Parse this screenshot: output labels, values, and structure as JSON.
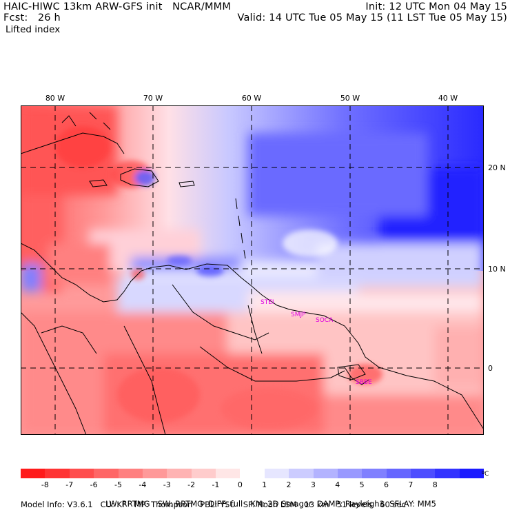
{
  "header": {
    "left1": "HAIC-HIWC 13km ARW-GFS init",
    "left1b": "NCAR/MMM",
    "left2_label": "Fcst:",
    "left2_value": "26 h",
    "right1": "Init: 12 UTC Mon 04 May 15",
    "right2": "Valid: 14 UTC Tue 05 May 15 (11 LST Tue 05 May 15)",
    "field": "Lifted index"
  },
  "lon_labels": [
    "80 W",
    "70 W",
    "60 W",
    "50 W",
    "40 W"
  ],
  "lat_labels": [
    "20 N",
    "10 N",
    "0"
  ],
  "cities": [
    "STEI",
    "SMJP",
    "SOCA",
    "SBBE"
  ],
  "colorbar": {
    "labels": [
      "-8",
      "-7",
      "-6",
      "-5",
      "-4",
      "-3",
      "-2",
      "-1",
      "0",
      "1",
      "2",
      "3",
      "4",
      "5",
      "6",
      "7",
      "8"
    ],
    "unit": "ºC",
    "colors": [
      "#ff1a1a",
      "#ff3333",
      "#ff4d4d",
      "#ff6666",
      "#ff8080",
      "#ff9999",
      "#ffb3b3",
      "#ffcccc",
      "#ffe6e6",
      "#ffffff",
      "#e6e6ff",
      "#ccccff",
      "#b3b3ff",
      "#9999ff",
      "#8080ff",
      "#6666ff",
      "#4d4dff",
      "#3333ff",
      "#1a1aff"
    ]
  },
  "footer": {
    "line1": [
      "Model Info: V3.6.1",
      "CU: KF",
      "MP: Thompson",
      "PBL: YSU",
      "SF: Noah LSM",
      "13 km",
      "51 levels",
      "60 sec"
    ],
    "line2": [
      "LW: RRTMG",
      "SW: RRTMG",
      "DIFF: full",
      "KM: 2D Smagor",
      "DAMP: Rayleigh3",
      "SFLAY: MM5"
    ]
  }
}
